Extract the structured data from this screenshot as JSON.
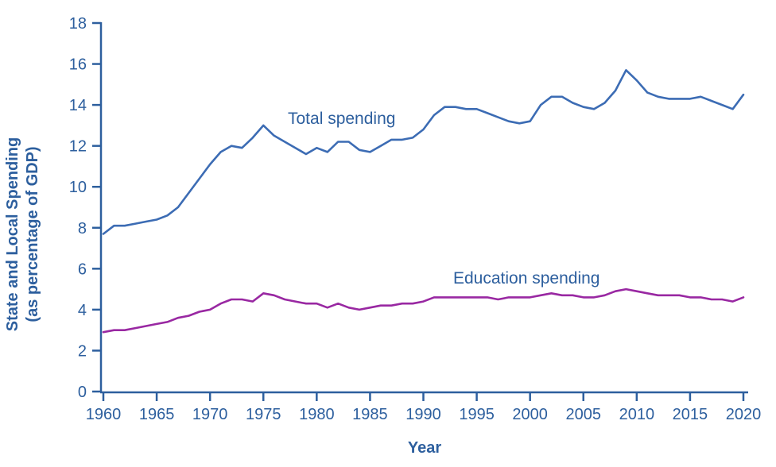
{
  "figure": {
    "y_axis_title_line1": "State and Local Spending",
    "y_axis_title_line2": "(as percentage of GDP)",
    "x_axis_title": "Year",
    "total_series_label": "Total spending",
    "education_series_label": "Education spending"
  },
  "colors": {
    "axis_and_text_blue": "#2d5f9e",
    "total_line_blue": "#3c6cb4",
    "education_line_purple": "#9928a2",
    "background": "#ffffff"
  },
  "chart_data": {
    "type": "line",
    "title": "",
    "xlabel": "Year",
    "ylabel": "State and Local Spending (as percentage of GDP)",
    "xlim": [
      1960,
      2020
    ],
    "ylim": [
      0,
      18
    ],
    "x_ticks": [
      1960,
      1965,
      1970,
      1975,
      1980,
      1985,
      1990,
      1995,
      2000,
      2005,
      2010,
      2015,
      2020
    ],
    "y_ticks": [
      0,
      2,
      4,
      6,
      8,
      10,
      12,
      14,
      16,
      18
    ],
    "grid": false,
    "legend": "inline-text-labels",
    "x": [
      1960,
      1961,
      1962,
      1963,
      1964,
      1965,
      1966,
      1967,
      1968,
      1969,
      1970,
      1971,
      1972,
      1973,
      1974,
      1975,
      1976,
      1977,
      1978,
      1979,
      1980,
      1981,
      1982,
      1983,
      1984,
      1985,
      1986,
      1987,
      1988,
      1989,
      1990,
      1991,
      1992,
      1993,
      1994,
      1995,
      1996,
      1997,
      1998,
      1999,
      2000,
      2001,
      2002,
      2003,
      2004,
      2005,
      2006,
      2007,
      2008,
      2009,
      2010,
      2011,
      2012,
      2013,
      2014,
      2015,
      2016,
      2017,
      2018,
      2019,
      2020
    ],
    "series": [
      {
        "name": "Total spending",
        "color": "#3c6cb4",
        "values": [
          7.7,
          8.1,
          8.1,
          8.2,
          8.3,
          8.4,
          8.6,
          9.0,
          9.7,
          10.4,
          11.1,
          11.7,
          12.0,
          11.9,
          12.4,
          13.0,
          12.5,
          12.2,
          11.9,
          11.6,
          11.9,
          11.7,
          12.2,
          12.2,
          11.8,
          11.7,
          12.0,
          12.3,
          12.3,
          12.4,
          12.8,
          13.5,
          13.9,
          13.9,
          13.8,
          13.8,
          13.6,
          13.4,
          13.2,
          13.1,
          13.2,
          14.0,
          14.4,
          14.4,
          14.1,
          13.9,
          13.8,
          14.1,
          14.7,
          15.7,
          15.2,
          14.6,
          14.4,
          14.3,
          14.3,
          14.3,
          14.4,
          14.2,
          14.0,
          13.8,
          14.5
        ]
      },
      {
        "name": "Education spending",
        "color": "#9928a2",
        "values": [
          2.9,
          3.0,
          3.0,
          3.1,
          3.2,
          3.3,
          3.4,
          3.6,
          3.7,
          3.9,
          4.0,
          4.3,
          4.5,
          4.5,
          4.4,
          4.8,
          4.7,
          4.5,
          4.4,
          4.3,
          4.3,
          4.1,
          4.3,
          4.1,
          4.0,
          4.1,
          4.2,
          4.2,
          4.3,
          4.3,
          4.4,
          4.6,
          4.6,
          4.6,
          4.6,
          4.6,
          4.6,
          4.5,
          4.6,
          4.6,
          4.6,
          4.7,
          4.8,
          4.7,
          4.7,
          4.6,
          4.6,
          4.7,
          4.9,
          5.0,
          4.9,
          4.8,
          4.7,
          4.7,
          4.7,
          4.6,
          4.6,
          4.5,
          4.5,
          4.4,
          4.6
        ]
      }
    ]
  }
}
